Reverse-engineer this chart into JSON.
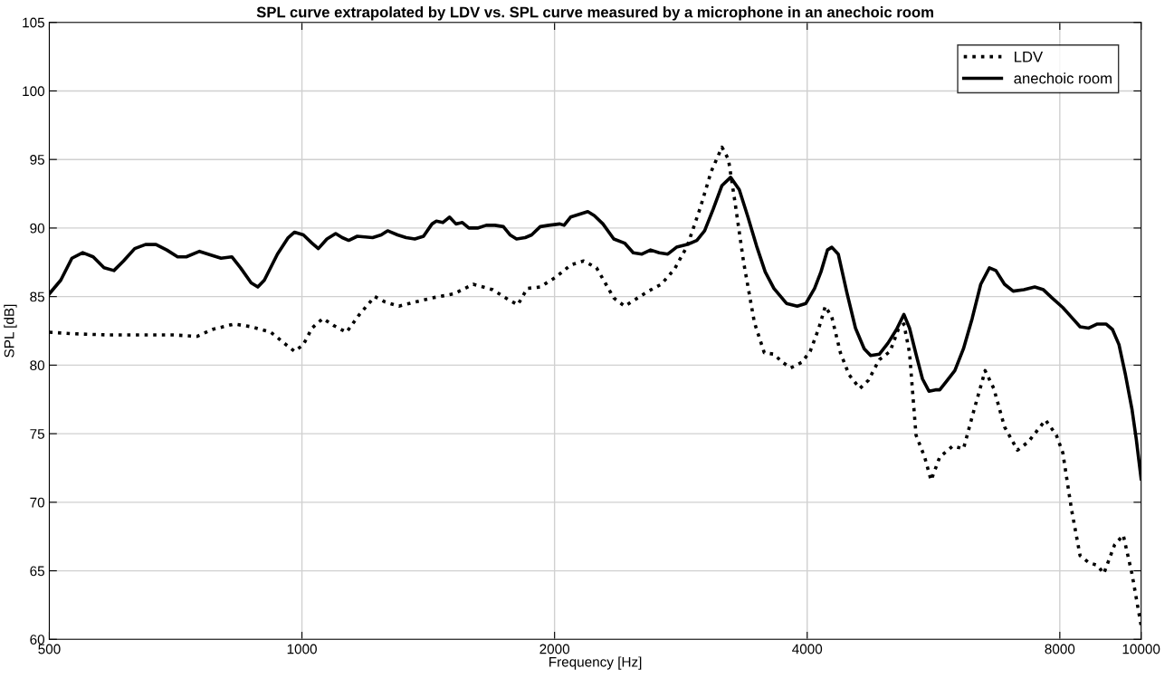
{
  "chart_data": {
    "type": "line",
    "title": "SPL curve extrapolated by LDV vs. SPL curve measured by a microphone in an anechoic room",
    "xlabel": "Frequency [Hz]",
    "ylabel": "SPL [dB]",
    "log": "x",
    "xlim": [
      500,
      10000
    ],
    "xticks": [
      500,
      1000,
      2000,
      4000,
      8000,
      10000
    ],
    "ylim": [
      60,
      105
    ],
    "yticks": [
      60,
      65,
      70,
      75,
      80,
      85,
      90,
      95,
      100,
      105
    ],
    "grid": true,
    "legend": "top right",
    "series": [
      {
        "name": "LDV",
        "color": "#000000",
        "line_style": "dotted",
        "x": [
          500,
          529,
          588,
          647,
          703,
          750,
          782,
          830,
          870,
          918,
          957,
          980,
          1004,
          1028,
          1059,
          1090,
          1130,
          1171,
          1221,
          1257,
          1305,
          1363,
          1429,
          1517,
          1600,
          1688,
          1760,
          1808,
          1856,
          1923,
          2005,
          2090,
          2166,
          2244,
          2298,
          2353,
          2424,
          2497,
          2588,
          2681,
          2779,
          2879,
          2984,
          3073,
          3166,
          3223,
          3281,
          3360,
          3461,
          3556,
          3651,
          3739,
          3824,
          3939,
          4033,
          4130,
          4204,
          4280,
          4382,
          4487,
          4622,
          4733,
          4875,
          5022,
          5142,
          5216,
          5297,
          5392,
          5521,
          5620,
          5755,
          5964,
          6142,
          6327,
          6518,
          6674,
          6874,
          7123,
          7337,
          7693,
          7924,
          8067,
          8260,
          8458,
          8661,
          8868,
          9027,
          9299,
          9522,
          9751,
          10000
        ],
        "values": [
          82.4,
          82.3,
          82.2,
          82.2,
          82.2,
          82.1,
          82.6,
          83.0,
          82.8,
          82.4,
          81.5,
          81.0,
          81.5,
          82.7,
          83.4,
          82.9,
          82.4,
          83.7,
          85.0,
          84.6,
          84.3,
          84.6,
          84.9,
          85.2,
          85.9,
          85.5,
          84.8,
          84.4,
          85.6,
          85.7,
          86.4,
          87.3,
          87.6,
          87.1,
          86.0,
          84.9,
          84.3,
          84.8,
          85.4,
          85.9,
          87.0,
          88.7,
          91.5,
          94.1,
          95.9,
          95.0,
          91.9,
          87.5,
          83.1,
          80.9,
          80.8,
          80.2,
          79.8,
          80.2,
          81.0,
          82.7,
          84.3,
          83.5,
          80.9,
          79.3,
          78.3,
          78.9,
          80.4,
          81.0,
          82.7,
          83.0,
          80.9,
          74.9,
          73.3,
          71.6,
          73.3,
          74.1,
          73.9,
          76.8,
          79.6,
          78.3,
          75.5,
          73.8,
          74.4,
          76.0,
          74.9,
          73.6,
          69.5,
          66.1,
          65.6,
          65.4,
          64.8,
          66.9,
          67.6,
          64.8,
          61.0
        ]
      },
      {
        "name": "anechoic room",
        "color": "#000000",
        "line_style": "solid",
        "x": [
          500,
          516,
          532,
          548,
          564,
          581,
          597,
          613,
          632,
          651,
          670,
          690,
          711,
          728,
          755,
          782,
          801,
          825,
          845,
          870,
          886,
          902,
          935,
          963,
          980,
          1004,
          1028,
          1046,
          1071,
          1097,
          1117,
          1137,
          1164,
          1214,
          1243,
          1265,
          1300,
          1331,
          1363,
          1396,
          1429,
          1446,
          1472,
          1499,
          1526,
          1553,
          1581,
          1619,
          1658,
          1698,
          1738,
          1770,
          1802,
          1845,
          1878,
          1923,
          1969,
          2029,
          2053,
          2090,
          2140,
          2191,
          2231,
          2284,
          2353,
          2424,
          2482,
          2542,
          2603,
          2665,
          2729,
          2795,
          2879,
          2955,
          3019,
          3092,
          3166,
          3242,
          3320,
          3400,
          3481,
          3565,
          3651,
          3779,
          3892,
          3986,
          4082,
          4154,
          4229,
          4280,
          4356,
          4460,
          4567,
          4677,
          4761,
          4875,
          4992,
          5111,
          5216,
          5297,
          5392,
          5488,
          5587,
          5687,
          5755,
          5858,
          5998,
          6142,
          6290,
          6440,
          6595,
          6713,
          6874,
          7039,
          7250,
          7469,
          7648,
          7832,
          8067,
          8260,
          8458,
          8661,
          8868,
          9081,
          9244,
          9410,
          9579,
          9751,
          9868,
          10000
        ],
        "values": [
          85.2,
          86.2,
          87.8,
          88.2,
          87.9,
          87.1,
          86.9,
          87.6,
          88.5,
          88.8,
          88.8,
          88.4,
          87.9,
          87.9,
          88.3,
          88.0,
          87.8,
          87.9,
          87.1,
          86.0,
          85.7,
          86.2,
          88.1,
          89.3,
          89.7,
          89.5,
          88.9,
          88.5,
          89.2,
          89.6,
          89.3,
          89.1,
          89.4,
          89.3,
          89.5,
          89.8,
          89.5,
          89.3,
          89.2,
          89.4,
          90.3,
          90.5,
          90.4,
          90.8,
          90.3,
          90.4,
          90.0,
          90.0,
          90.2,
          90.2,
          90.1,
          89.5,
          89.2,
          89.3,
          89.5,
          90.1,
          90.2,
          90.3,
          90.2,
          90.8,
          91.0,
          91.2,
          90.9,
          90.3,
          89.2,
          88.9,
          88.2,
          88.1,
          88.4,
          88.2,
          88.1,
          88.6,
          88.8,
          89.1,
          89.8,
          91.4,
          93.1,
          93.7,
          92.8,
          90.8,
          88.7,
          86.8,
          85.6,
          84.5,
          84.3,
          84.5,
          85.6,
          86.8,
          88.4,
          88.6,
          88.1,
          85.3,
          82.7,
          81.2,
          80.7,
          80.8,
          81.6,
          82.6,
          83.7,
          82.7,
          80.8,
          79.0,
          78.1,
          78.2,
          78.2,
          78.8,
          79.6,
          81.2,
          83.4,
          85.9,
          87.1,
          86.9,
          85.9,
          85.4,
          85.5,
          85.7,
          85.5,
          84.9,
          84.2,
          83.5,
          82.8,
          82.7,
          83.0,
          83.0,
          82.6,
          81.5,
          79.3,
          76.8,
          74.6,
          71.7
        ]
      }
    ]
  }
}
